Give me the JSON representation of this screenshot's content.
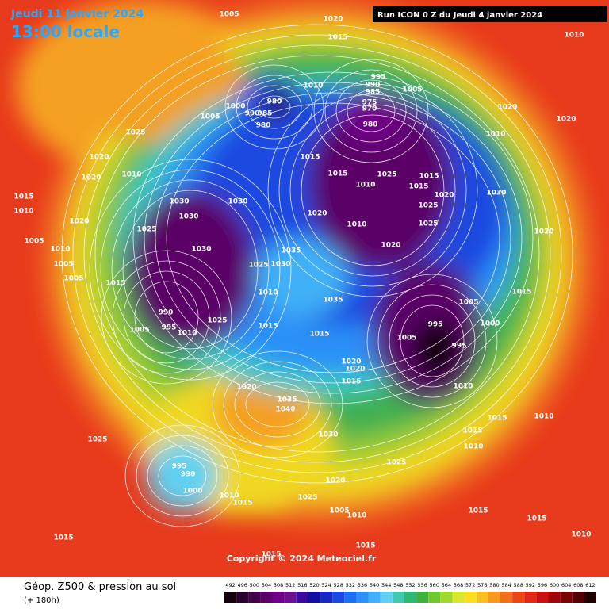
{
  "header": {
    "date": "Jeudi 11 janvier 2024",
    "time": "13:00 locale",
    "run": "Run ICON 0 Z du Jeudi 4 janvier 2024"
  },
  "copyright": "Copyright © 2024 Meteociel.fr",
  "footer": {
    "title": "Géop. Z500 & pression au sol",
    "lead": "(+ 180h)"
  },
  "colorbar": {
    "ticks": [
      492,
      496,
      500,
      504,
      508,
      512,
      516,
      520,
      524,
      528,
      532,
      536,
      540,
      544,
      548,
      552,
      556,
      560,
      564,
      568,
      572,
      576,
      580,
      584,
      588,
      592,
      596,
      600,
      604,
      608,
      612
    ],
    "colors": [
      "#14000f",
      "#2a0030",
      "#40004a",
      "#5a0066",
      "#700085",
      "#6a1090",
      "#3a0aa0",
      "#1010a0",
      "#1828c0",
      "#1a48e0",
      "#1e6cf0",
      "#2c90f8",
      "#40b0f8",
      "#60d0f0",
      "#40c8b0",
      "#30b870",
      "#40b040",
      "#70c830",
      "#a0d830",
      "#d8e830",
      "#f8e020",
      "#f8c020",
      "#f89820",
      "#f07020",
      "#e84818",
      "#e02818",
      "#c81010",
      "#a00808",
      "#780404",
      "#500000",
      "#200000"
    ]
  },
  "pressure_labels": [
    1005,
    1020,
    1015,
    1010,
    995,
    990,
    985,
    975,
    970,
    980,
    1005,
    1010,
    980,
    1000,
    990,
    985,
    980,
    1005,
    1025,
    1020,
    1020,
    1010,
    1020,
    1020,
    1010,
    1015,
    1010,
    1020,
    1025,
    1030,
    1030,
    1030,
    1020,
    1015,
    1015,
    1025,
    1010,
    1015,
    1015,
    1020,
    1030,
    1025,
    1025,
    1010,
    1020,
    1020,
    1005,
    1010,
    1005,
    1005,
    1015,
    1030,
    1035,
    1030,
    1025,
    1010,
    1035,
    990,
    995,
    1010,
    1005,
    1025,
    1015,
    1015,
    995,
    1005,
    995,
    1000,
    1005,
    1015,
    1020,
    1020,
    1015,
    1010,
    1020,
    1035,
    1040,
    1030,
    1025,
    1025,
    995,
    990,
    1000,
    1020,
    1025,
    1010,
    1015,
    1005,
    1010,
    1015,
    1015,
    1015,
    1015,
    1015,
    1010,
    1010,
    1015,
    1010,
    1015
  ]
}
